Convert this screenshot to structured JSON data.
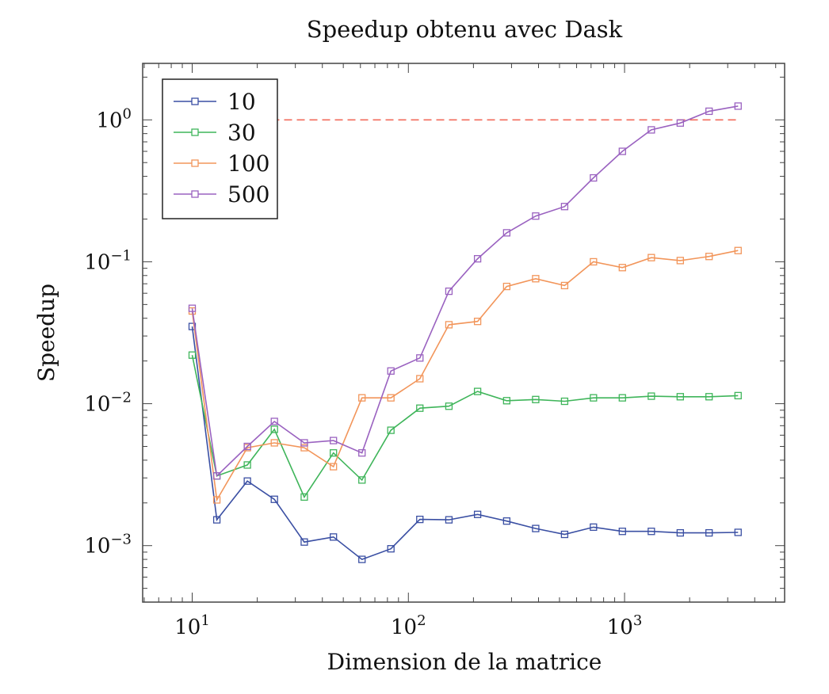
{
  "chart_data": {
    "type": "line",
    "title": "Speedup obtenu avec Dask",
    "xlabel": "Dimension de la matrice",
    "ylabel": "Speedup",
    "x_scale": "log",
    "y_scale": "log",
    "xlim": [
      5.9,
      5500
    ],
    "ylim": [
      0.0004,
      2.5
    ],
    "x_ticks": [
      {
        "value": 10,
        "label": "10^1"
      },
      {
        "value": 100,
        "label": "10^2"
      },
      {
        "value": 1000,
        "label": "10^3"
      }
    ],
    "y_ticks": [
      {
        "value": 1,
        "label": "10^0"
      },
      {
        "value": 0.1,
        "label": "10^-1"
      },
      {
        "value": 0.01,
        "label": "10^-2"
      },
      {
        "value": 0.001,
        "label": "10^-3"
      }
    ],
    "x": [
      10,
      13,
      18,
      24,
      33,
      45,
      61,
      83,
      113,
      154,
      209,
      285,
      388,
      528,
      718,
      977,
      1330,
      1810,
      2460,
      3350
    ],
    "series": [
      {
        "name": "10",
        "color": "#3a4fa3",
        "values": [
          0.035,
          0.00152,
          0.00285,
          0.00212,
          0.00106,
          0.00115,
          0.0008,
          0.00095,
          0.00153,
          0.00152,
          0.00166,
          0.00149,
          0.00132,
          0.0012,
          0.00135,
          0.00126,
          0.00126,
          0.00123,
          0.00123,
          0.00124
        ]
      },
      {
        "name": "30",
        "color": "#3fb55a",
        "values": [
          0.022,
          0.0031,
          0.0037,
          0.0066,
          0.0022,
          0.0045,
          0.0029,
          0.0065,
          0.0093,
          0.0096,
          0.0122,
          0.0105,
          0.0107,
          0.0104,
          0.011,
          0.011,
          0.0113,
          0.0112,
          0.0112,
          0.0114
        ]
      },
      {
        "name": "100",
        "color": "#f2955a",
        "values": [
          0.045,
          0.0021,
          0.0049,
          0.0053,
          0.0049,
          0.0036,
          0.011,
          0.011,
          0.015,
          0.036,
          0.038,
          0.067,
          0.076,
          0.068,
          0.1,
          0.091,
          0.107,
          0.102,
          0.109,
          0.12
        ]
      },
      {
        "name": "500",
        "color": "#9a62c0",
        "values": [
          0.047,
          0.0031,
          0.005,
          0.0075,
          0.0053,
          0.0055,
          0.0045,
          0.017,
          0.021,
          0.062,
          0.105,
          0.16,
          0.21,
          0.245,
          0.39,
          0.6,
          0.85,
          0.95,
          1.15,
          1.25
        ]
      }
    ],
    "reference_line": {
      "y": 1,
      "color": "#f26b5b",
      "style": "dashed"
    },
    "legend": {
      "position": "top-left"
    },
    "grid": false
  }
}
